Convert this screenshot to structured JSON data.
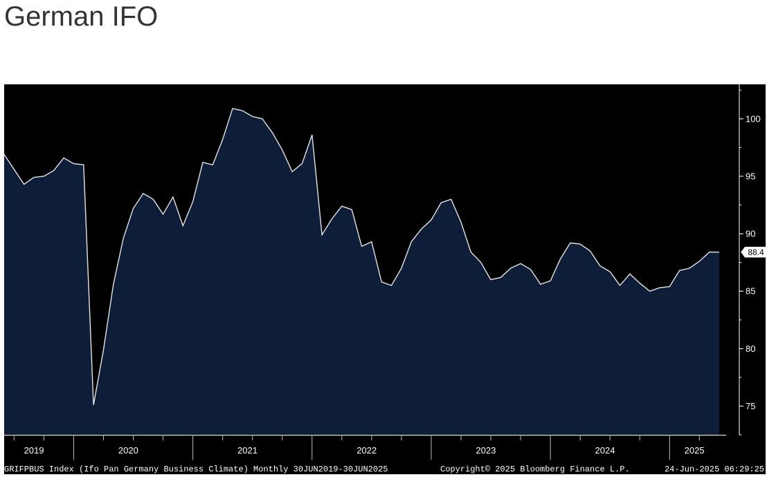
{
  "page": {
    "title": "German IFO"
  },
  "colors": {
    "background": "#000000",
    "area_fill": "#0e1e38",
    "line": "#e6e6e6",
    "axis_text": "#ffffff",
    "page_title": "#333333"
  },
  "chart_data": {
    "type": "area",
    "title": "German IFO",
    "ylim": [
      72.5,
      103.0
    ],
    "yticks": [
      75,
      80,
      85,
      90,
      95,
      100
    ],
    "y_axis_position": "right",
    "grid": false,
    "last_value_label": "88.4",
    "x_year_labels": [
      "2019",
      "2020",
      "2021",
      "2022",
      "2023",
      "2024",
      "2025"
    ],
    "x_start": "2019-06",
    "x_end": "2025-06",
    "frequency": "monthly",
    "series": [
      {
        "ticker": "GRIFPBUS Index",
        "x": [
          "2019-06",
          "2019-07",
          "2019-08",
          "2019-09",
          "2019-10",
          "2019-11",
          "2019-12",
          "2020-01",
          "2020-02",
          "2020-03",
          "2020-04",
          "2020-05",
          "2020-06",
          "2020-07",
          "2020-08",
          "2020-09",
          "2020-10",
          "2020-11",
          "2020-12",
          "2021-01",
          "2021-02",
          "2021-03",
          "2021-04",
          "2021-05",
          "2021-06",
          "2021-07",
          "2021-08",
          "2021-09",
          "2021-10",
          "2021-11",
          "2021-12",
          "2022-01",
          "2022-02",
          "2022-03",
          "2022-04",
          "2022-05",
          "2022-06",
          "2022-07",
          "2022-08",
          "2022-09",
          "2022-10",
          "2022-11",
          "2022-12",
          "2023-01",
          "2023-02",
          "2023-03",
          "2023-04",
          "2023-05",
          "2023-06",
          "2023-07",
          "2023-08",
          "2023-09",
          "2023-10",
          "2023-11",
          "2023-12",
          "2024-01",
          "2024-02",
          "2024-03",
          "2024-04",
          "2024-05",
          "2024-06",
          "2024-07",
          "2024-08",
          "2024-09",
          "2024-10",
          "2024-11",
          "2024-12",
          "2025-01",
          "2025-02",
          "2025-03",
          "2025-04",
          "2025-05",
          "2025-06"
        ],
        "values": [
          96.9,
          95.6,
          94.3,
          94.9,
          95.0,
          95.5,
          96.6,
          96.1,
          96.0,
          75.1,
          79.9,
          85.6,
          89.6,
          92.2,
          93.5,
          93.0,
          91.7,
          93.2,
          90.7,
          92.8,
          96.2,
          96.0,
          98.2,
          100.9,
          100.7,
          100.2,
          100.0,
          98.8,
          97.3,
          95.4,
          96.1,
          98.6,
          89.9,
          91.3,
          92.4,
          92.1,
          88.9,
          89.3,
          85.8,
          85.5,
          87.0,
          89.3,
          90.4,
          91.2,
          92.7,
          93.0,
          91.0,
          88.4,
          87.5,
          86.0,
          86.2,
          87.0,
          87.4,
          86.9,
          85.6,
          85.9,
          87.8,
          89.2,
          89.1,
          88.5,
          87.2,
          86.7,
          85.5,
          86.5,
          85.7,
          85.0,
          85.3,
          85.4,
          86.8,
          87.0,
          87.6,
          88.4,
          88.4
        ]
      }
    ],
    "footer": {
      "left": "GRIFPBUS Index (Ifo Pan Germany Business Climate)  Monthly 30JUN2019-30JUN2025",
      "center": "Copyright© 2025 Bloomberg Finance L.P.",
      "right": "24-Jun-2025 06:29:25"
    }
  }
}
